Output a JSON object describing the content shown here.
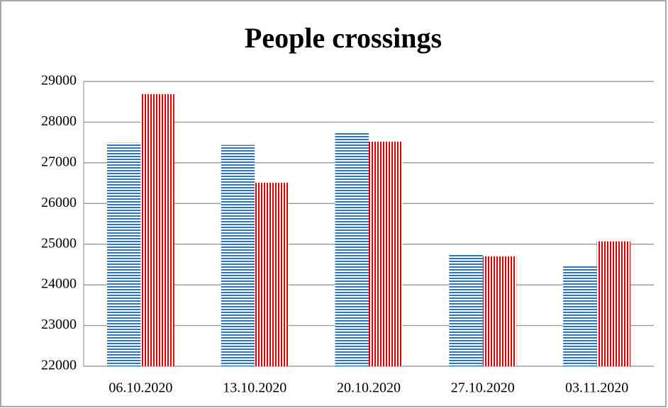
{
  "chart_data": {
    "type": "bar",
    "title": "People crossings",
    "categories": [
      "06.10.2020",
      "13.10.2020",
      "20.10.2020",
      "27.10.2020",
      "03.11.2020"
    ],
    "series": [
      {
        "color": "#2e75b6",
        "pattern": "horizontal",
        "values": [
          27490,
          27440,
          27750,
          24750,
          24460
        ]
      },
      {
        "color": "#e00000",
        "pattern": "vertical",
        "values": [
          28690,
          26510,
          27520,
          24700,
          25070
        ]
      }
    ],
    "ylim": [
      22000,
      29000
    ],
    "yticks": [
      22000,
      23000,
      24000,
      25000,
      26000,
      27000,
      28000,
      29000
    ],
    "grid": true
  }
}
